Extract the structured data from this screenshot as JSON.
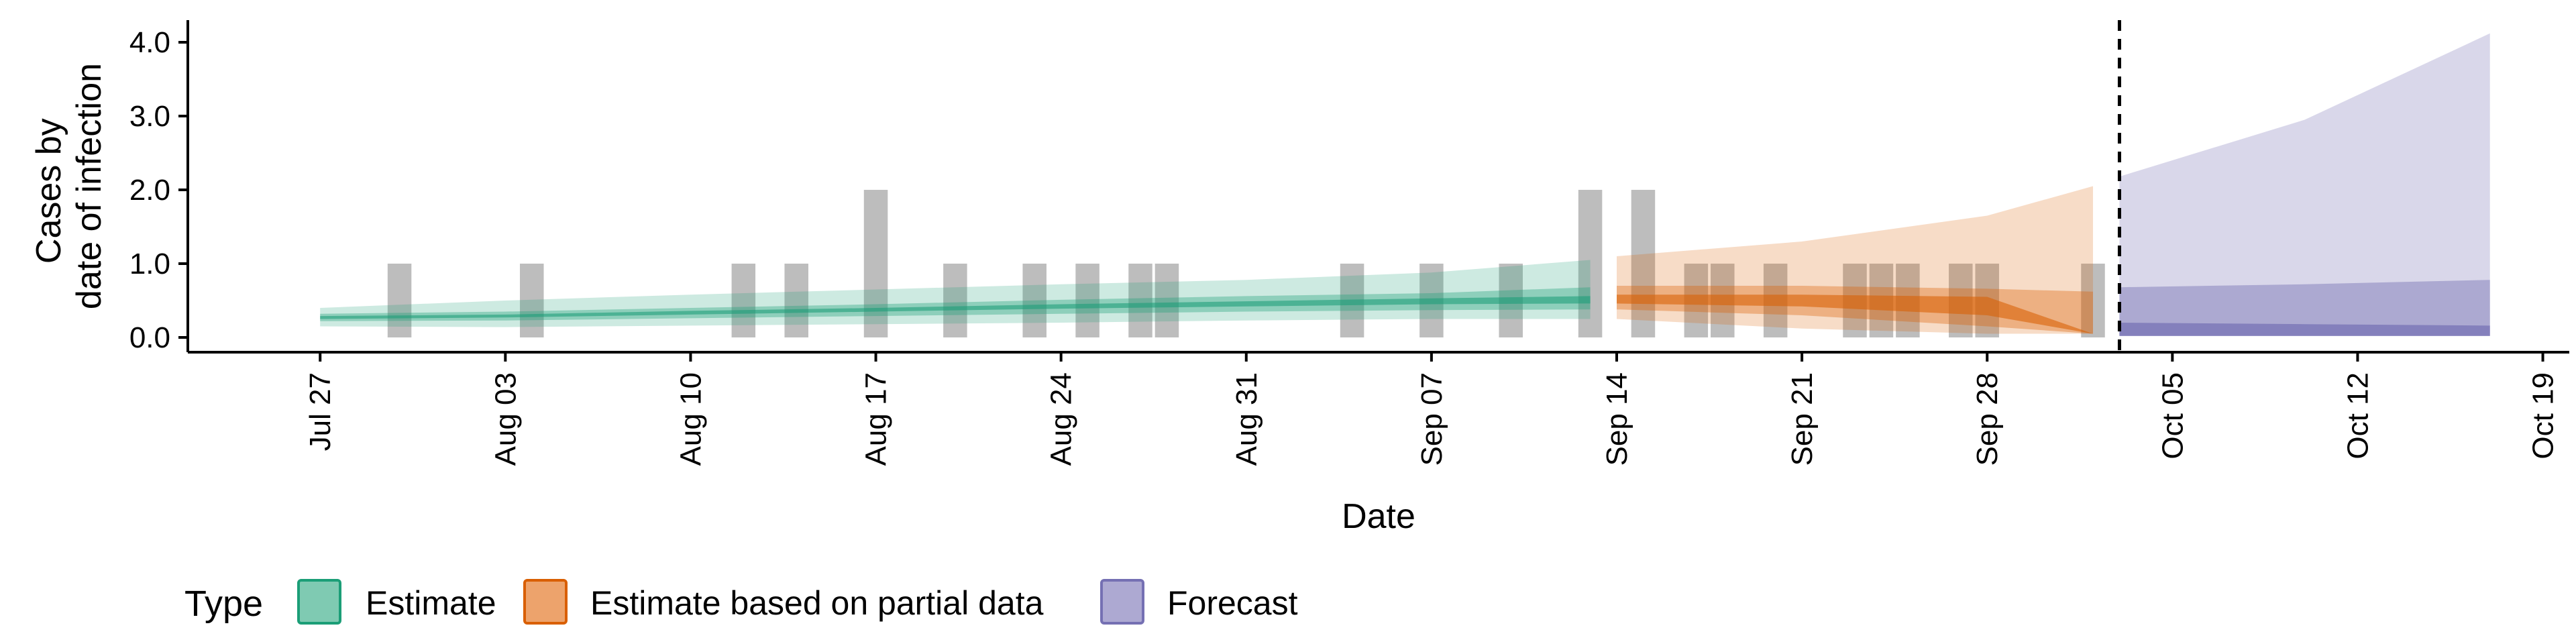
{
  "chart_data": {
    "type": "area",
    "title": "",
    "xlabel": "Date",
    "ylabel_lines": [
      "Cases by",
      "date of infection"
    ],
    "x_ticks": [
      "2020-07-27",
      "2020-08-03",
      "2020-08-10",
      "2020-08-17",
      "2020-08-24",
      "2020-08-31",
      "2020-09-07",
      "2020-09-14",
      "2020-09-21",
      "2020-09-28",
      "2020-10-05",
      "2020-10-12",
      "2020-10-19"
    ],
    "x_tick_labels": [
      "Jul 27",
      "Aug 03",
      "Aug 10",
      "Aug 17",
      "Aug 24",
      "Aug 31",
      "Sep 07",
      "Sep 14",
      "Sep 21",
      "Sep 28",
      "Oct 05",
      "Oct 12",
      "Oct 19"
    ],
    "xlim": [
      "2020-07-22",
      "2020-10-20"
    ],
    "y_ticks": [
      0.0,
      1.0,
      2.0,
      3.0,
      4.0
    ],
    "y_tick_labels": [
      "0.0",
      "1.0",
      "2.0",
      "3.0",
      "4.0"
    ],
    "ylim": [
      -0.2,
      4.3
    ],
    "forecast_start_line": "2020-10-03",
    "grid": false,
    "legend": {
      "title": "Type",
      "position": "bottom",
      "entries": [
        {
          "label": "Estimate",
          "fill": "#7FCAB2",
          "stroke": "#1B9E77"
        },
        {
          "label": "Estimate based on partial data",
          "fill": "#EDA36C",
          "stroke": "#D95F02"
        },
        {
          "label": "Forecast",
          "fill": "#ADA9D2",
          "stroke": "#7570B3"
        }
      ]
    },
    "observed_cases": [
      {
        "date": "2020-07-30",
        "value": 1
      },
      {
        "date": "2020-08-04",
        "value": 1
      },
      {
        "date": "2020-08-12",
        "value": 1
      },
      {
        "date": "2020-08-14",
        "value": 1
      },
      {
        "date": "2020-08-17",
        "value": 2
      },
      {
        "date": "2020-08-20",
        "value": 1
      },
      {
        "date": "2020-08-23",
        "value": 1
      },
      {
        "date": "2020-08-25",
        "value": 1
      },
      {
        "date": "2020-08-27",
        "value": 1
      },
      {
        "date": "2020-08-28",
        "value": 1
      },
      {
        "date": "2020-09-04",
        "value": 1
      },
      {
        "date": "2020-09-07",
        "value": 1
      },
      {
        "date": "2020-09-10",
        "value": 1
      },
      {
        "date": "2020-09-13",
        "value": 2
      },
      {
        "date": "2020-09-15",
        "value": 2
      },
      {
        "date": "2020-09-17",
        "value": 1
      },
      {
        "date": "2020-09-18",
        "value": 1
      },
      {
        "date": "2020-09-20",
        "value": 1
      },
      {
        "date": "2020-09-23",
        "value": 1
      },
      {
        "date": "2020-09-24",
        "value": 1
      },
      {
        "date": "2020-09-25",
        "value": 1
      },
      {
        "date": "2020-09-27",
        "value": 1
      },
      {
        "date": "2020-09-28",
        "value": 1
      },
      {
        "date": "2020-10-02",
        "value": 1
      }
    ],
    "observed_color": "#BDBDBD",
    "series": [
      {
        "name": "Estimate",
        "color": "#1B9E77",
        "fill_opacity": 0.22,
        "points": [
          {
            "date": "2020-07-27",
            "lo90": 0.15,
            "hi90": 0.4,
            "lo50": 0.22,
            "hi50": 0.32,
            "lo20": 0.25,
            "hi20": 0.29
          },
          {
            "date": "2020-08-03",
            "lo90": 0.14,
            "hi90": 0.5,
            "lo50": 0.23,
            "hi50": 0.35,
            "lo20": 0.27,
            "hi20": 0.31
          },
          {
            "date": "2020-08-10",
            "lo90": 0.16,
            "hi90": 0.58,
            "lo50": 0.26,
            "hi50": 0.4,
            "lo20": 0.31,
            "hi20": 0.36
          },
          {
            "date": "2020-08-17",
            "lo90": 0.18,
            "hi90": 0.65,
            "lo50": 0.29,
            "hi50": 0.45,
            "lo20": 0.35,
            "hi20": 0.4
          },
          {
            "date": "2020-08-24",
            "lo90": 0.2,
            "hi90": 0.72,
            "lo50": 0.32,
            "hi50": 0.51,
            "lo20": 0.39,
            "hi20": 0.45
          },
          {
            "date": "2020-08-31",
            "lo90": 0.23,
            "hi90": 0.78,
            "lo50": 0.35,
            "hi50": 0.56,
            "lo20": 0.42,
            "hi20": 0.49
          },
          {
            "date": "2020-09-07",
            "lo90": 0.25,
            "hi90": 0.88,
            "lo50": 0.37,
            "hi50": 0.6,
            "lo20": 0.45,
            "hi20": 0.53
          },
          {
            "date": "2020-09-13",
            "lo90": 0.25,
            "hi90": 1.05,
            "lo50": 0.38,
            "hi50": 0.68,
            "lo20": 0.46,
            "hi20": 0.56
          }
        ]
      },
      {
        "name": "Estimate based on partial data",
        "color": "#D95F02",
        "fill_opacity": 0.22,
        "points": [
          {
            "date": "2020-09-14",
            "lo90": 0.25,
            "hi90": 1.1,
            "lo50": 0.38,
            "hi50": 0.7,
            "lo20": 0.46,
            "hi20": 0.58
          },
          {
            "date": "2020-09-21",
            "lo90": 0.12,
            "hi90": 1.3,
            "lo50": 0.3,
            "hi50": 0.7,
            "lo20": 0.42,
            "hi20": 0.58
          },
          {
            "date": "2020-09-28",
            "lo90": 0.05,
            "hi90": 1.65,
            "lo50": 0.15,
            "hi50": 0.66,
            "lo20": 0.3,
            "hi20": 0.55
          },
          {
            "date": "2020-10-02",
            "lo90": 0.05,
            "hi90": 2.05,
            "lo50": 0.05,
            "hi50": 0.62,
            "lo20": 0.05,
            "hi20": 0.05
          }
        ]
      },
      {
        "name": "Forecast",
        "color": "#7570B3",
        "fill_opacity": 0.28,
        "points": [
          {
            "date": "2020-10-03",
            "lo90": 0.02,
            "hi90": 2.18,
            "lo50": 0.02,
            "hi50": 0.68,
            "lo20": 0.02,
            "hi20": 0.2
          },
          {
            "date": "2020-10-10",
            "lo90": 0.02,
            "hi90": 2.95,
            "lo50": 0.02,
            "hi50": 0.72,
            "lo20": 0.02,
            "hi20": 0.18
          },
          {
            "date": "2020-10-17",
            "lo90": 0.02,
            "hi90": 4.12,
            "lo50": 0.02,
            "hi50": 0.78,
            "lo20": 0.02,
            "hi20": 0.16
          }
        ]
      }
    ]
  }
}
